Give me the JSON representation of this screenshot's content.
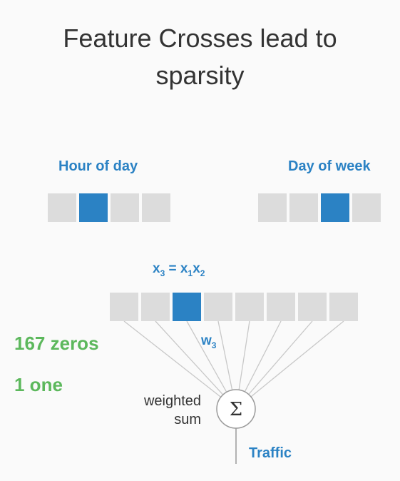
{
  "title_line1": "Feature Crosses lead to",
  "title_line2": "sparsity",
  "left_vector": {
    "label": "Hour of day",
    "cells": 4,
    "active_index": 1
  },
  "right_vector": {
    "label": "Day of week",
    "cells": 4,
    "active_index": 2
  },
  "cross_vector": {
    "cells": 8,
    "active_index": 2
  },
  "formula": {
    "x": "x",
    "sub3": "3",
    "eq": " = ",
    "sub1": "1",
    "sub2": "2"
  },
  "weight": {
    "w": "w",
    "sub": "3"
  },
  "stats": {
    "zeros": "167 zeros",
    "ones": "1 one"
  },
  "sum_node": {
    "label_line1": "weighted",
    "label_line2": "sum",
    "symbol": "Σ"
  },
  "output": {
    "label": "Traffic"
  },
  "colors": {
    "active": "#2b82c4",
    "inactive": "#dcdcdc",
    "green": "#5cb85c",
    "line": "#c8c8c8"
  }
}
